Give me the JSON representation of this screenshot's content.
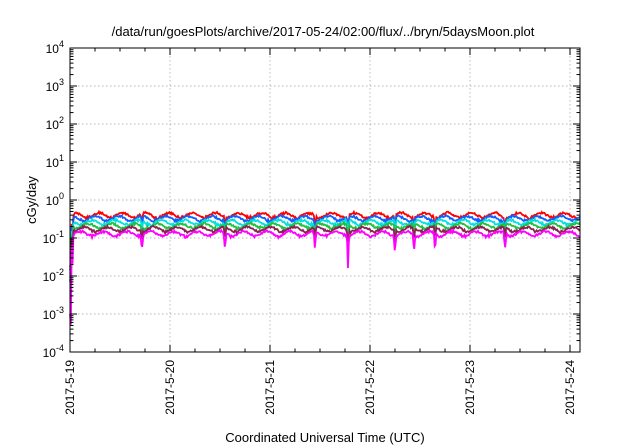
{
  "chart_data": {
    "type": "line",
    "title": "/data/run/goesPlots/archive/2017-05-24/02:00/flux/../bryn/5daysMoon.plot",
    "xlabel": "Coordinated Universal Time (UTC)",
    "ylabel": "cGy/day",
    "yscale": "log",
    "ylim": [
      0.0001,
      10000
    ],
    "xlim_days": [
      0,
      5.1
    ],
    "y_ticks": [
      {
        "base": "10",
        "exp": "4"
      },
      {
        "base": "10",
        "exp": "3"
      },
      {
        "base": "10",
        "exp": "2"
      },
      {
        "base": "10",
        "exp": "1"
      },
      {
        "base": "10",
        "exp": "0"
      },
      {
        "base": "10",
        "exp": "-1"
      },
      {
        "base": "10",
        "exp": "-2"
      },
      {
        "base": "10",
        "exp": "-3"
      },
      {
        "base": "10",
        "exp": "-4"
      }
    ],
    "x_ticks": [
      "2017-5-19",
      "2017-5-20",
      "2017-5-21",
      "2017-5-22",
      "2017-5-23",
      "2017-5-24"
    ],
    "grid": true,
    "series": [
      {
        "color": "#ff0000",
        "base": 0.4,
        "spike_scale": 1.0
      },
      {
        "color": "#1060ff",
        "base": 0.33,
        "spike_scale": 1.0
      },
      {
        "color": "#00e0e0",
        "base": 0.26,
        "spike_scale": 1.0
      },
      {
        "color": "#20c040",
        "base": 0.21,
        "spike_scale": 1.0
      },
      {
        "color": "#8b2252",
        "base": 0.17,
        "spike_scale": 1.0
      },
      {
        "color": "#ff00ff",
        "base": 0.13,
        "spike_scale": 1.6
      }
    ],
    "dips": [
      {
        "day": 0.72,
        "depth": 0.55
      },
      {
        "day": 1.55,
        "depth": 0.45
      },
      {
        "day": 2.45,
        "depth": 0.45
      },
      {
        "day": 2.78,
        "depth": 0.15
      },
      {
        "day": 3.25,
        "depth": 0.4
      },
      {
        "day": 3.44,
        "depth": 0.45
      },
      {
        "day": 3.65,
        "depth": 0.4
      },
      {
        "day": 4.35,
        "depth": 0.5
      }
    ]
  }
}
